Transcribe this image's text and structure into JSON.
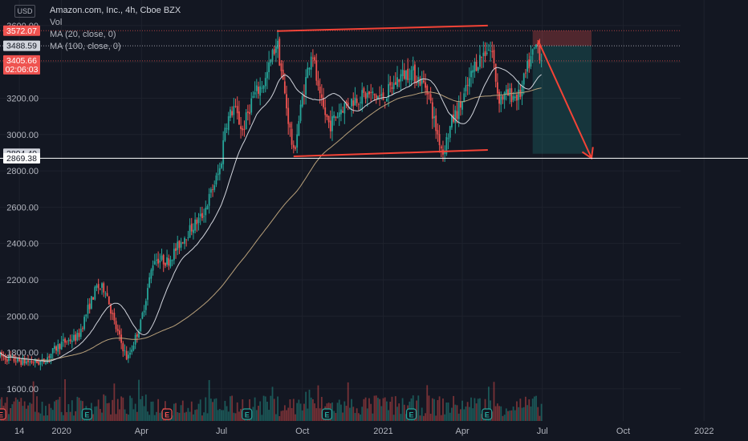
{
  "header": {
    "currency": "USD",
    "title": "Amazon.com, Inc., 4h, Cboe BZX",
    "indicators": [
      "Vol",
      "MA (20, close, 0)",
      "MA (100, close, 0)"
    ]
  },
  "colors": {
    "background": "#131722",
    "grid": "#1e222d",
    "up": "#26a69a",
    "down": "#ef5350",
    "ma20": "#d1d4dc",
    "ma100": "#b8a07a",
    "drawing": "#f44336",
    "axis_text": "#b2b5be",
    "crosshair": "#ffffff"
  },
  "chart_data": {
    "type": "candlestick",
    "title": "Amazon.com, Inc., 4h, Cboe BZX",
    "currency": "USD",
    "y_axis": {
      "ticks": [
        1600,
        1800,
        2000,
        2200,
        2400,
        2600,
        2800,
        3000,
        3200,
        3400,
        3600
      ],
      "tick_labels": [
        "1600.00",
        "1800.00",
        "2000.00",
        "2200.00",
        "2400.00",
        "2600.00",
        "2800.00",
        "3000.00",
        "3200.00",
        "3400.00",
        "3600.00"
      ],
      "range": [
        1400,
        3720
      ]
    },
    "x_axis": {
      "labels": [
        "14",
        "2020",
        "Apr",
        "Jul",
        "Oct",
        "2021",
        "Apr",
        "Jul",
        "Oct",
        "2022"
      ],
      "dates": [
        "2019-11-14",
        "2020-01-01",
        "2020-04-01",
        "2020-07-01",
        "2020-10-01",
        "2021-01-01",
        "2021-04-01",
        "2021-07-01",
        "2021-10-01",
        "2022-01-01"
      ],
      "range": [
        "2019-10-23",
        "2022-02-20"
      ]
    },
    "price_badges": [
      {
        "label": "3572.07",
        "value": 3572.07,
        "color": "#ef5350",
        "line": "dotted"
      },
      {
        "label": "3488.59",
        "value": 3488.59,
        "color": "#d1d4dc",
        "line": "dotted"
      },
      {
        "label": "3405.66",
        "sub": "02:06:03",
        "value": 3405.66,
        "color": "#ef5350",
        "line": "dotted"
      },
      {
        "label": "2894.40",
        "value": 2894.4,
        "color": "#d1d4dc",
        "line": "none"
      },
      {
        "label": "2869.38",
        "value": 2869.38,
        "color": "#ffffff",
        "line": "solid"
      }
    ],
    "price_path": [
      [
        "2019-10-23",
        1780
      ],
      [
        "2019-11-14",
        1752
      ],
      [
        "2019-12-10",
        1745
      ],
      [
        "2019-12-31",
        1848
      ],
      [
        "2020-01-20",
        1888
      ],
      [
        "2020-01-31",
        2040
      ],
      [
        "2020-02-10",
        2160
      ],
      [
        "2020-02-20",
        2150
      ],
      [
        "2020-03-01",
        1960
      ],
      [
        "2020-03-16",
        1760
      ],
      [
        "2020-03-31",
        1960
      ],
      [
        "2020-04-15",
        2320
      ],
      [
        "2020-05-01",
        2300
      ],
      [
        "2020-05-20",
        2440
      ],
      [
        "2020-06-10",
        2560
      ],
      [
        "2020-06-30",
        2820
      ],
      [
        "2020-07-05",
        3050
      ],
      [
        "2020-07-15",
        3150
      ],
      [
        "2020-07-25",
        3020
      ],
      [
        "2020-08-05",
        3200
      ],
      [
        "2020-08-20",
        3300
      ],
      [
        "2020-09-02",
        3520
      ],
      [
        "2020-09-10",
        3250
      ],
      [
        "2020-09-21",
        2890
      ],
      [
        "2020-10-01",
        3200
      ],
      [
        "2020-10-12",
        3480
      ],
      [
        "2020-10-20",
        3200
      ],
      [
        "2020-11-01",
        3050
      ],
      [
        "2020-11-15",
        3150
      ],
      [
        "2020-12-01",
        3200
      ],
      [
        "2020-12-15",
        3220
      ],
      [
        "2021-01-01",
        3200
      ],
      [
        "2021-01-20",
        3320
      ],
      [
        "2021-02-01",
        3350
      ],
      [
        "2021-02-20",
        3260
      ],
      [
        "2021-03-01",
        3050
      ],
      [
        "2021-03-10",
        2900
      ],
      [
        "2021-03-20",
        3070
      ],
      [
        "2021-04-01",
        3180
      ],
      [
        "2021-04-15",
        3380
      ],
      [
        "2021-04-30",
        3480
      ],
      [
        "2021-05-05",
        3450
      ],
      [
        "2021-05-12",
        3200
      ],
      [
        "2021-05-25",
        3220
      ],
      [
        "2021-06-05",
        3210
      ],
      [
        "2021-06-15",
        3380
      ],
      [
        "2021-06-25",
        3500
      ],
      [
        "2021-06-30",
        3420
      ]
    ],
    "series": [
      {
        "name": "Vol",
        "type": "histogram"
      },
      {
        "name": "MA (20, close, 0)",
        "type": "line"
      },
      {
        "name": "MA (100, close, 0)",
        "type": "line"
      }
    ],
    "event_markers": [
      {
        "label": "E",
        "kind": "earnings",
        "date": "2019-10-24",
        "color": "#ef5350"
      },
      {
        "label": "E",
        "kind": "earnings",
        "date": "2020-01-30",
        "color": "#26a69a"
      },
      {
        "label": "E",
        "kind": "earnings",
        "date": "2020-04-30",
        "color": "#ef5350"
      },
      {
        "label": "E",
        "kind": "earnings",
        "date": "2020-07-30",
        "color": "#26a69a"
      },
      {
        "label": "E",
        "kind": "earnings",
        "date": "2020-10-29",
        "color": "#26a69a"
      },
      {
        "label": "E",
        "kind": "earnings",
        "date": "2021-02-02",
        "color": "#26a69a"
      },
      {
        "label": "E",
        "kind": "earnings",
        "date": "2021-04-29",
        "color": "#26a69a"
      }
    ],
    "drawings": {
      "channel_upper": [
        [
          "2020-09-02",
          3570
        ],
        [
          "2021-04-30",
          3600
        ]
      ],
      "channel_lower": [
        [
          "2020-09-21",
          2880
        ],
        [
          "2021-04-30",
          2915
        ]
      ],
      "arrow": [
        [
          "2021-06-26",
          3520
        ],
        [
          "2021-08-26",
          2870
        ]
      ],
      "position_box": {
        "from": "2021-06-20",
        "to": "2021-08-26",
        "entry": 3488.59,
        "stop": 3572.07,
        "target": 2894.4
      }
    }
  }
}
